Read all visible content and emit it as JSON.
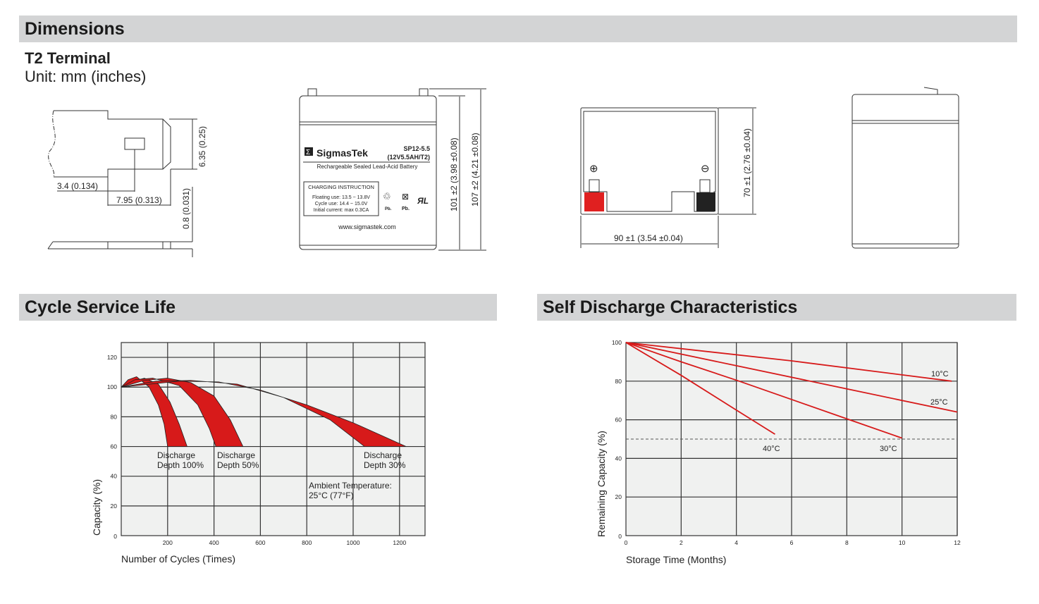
{
  "sections": {
    "dimensions": "Dimensions",
    "cycle": "Cycle Service Life",
    "self_discharge": "Self Discharge Characteristics"
  },
  "dimensions": {
    "terminal": "T2 Terminal",
    "unit": "Unit: mm (inches)",
    "terminal_dims": {
      "d1": "3.4 (0.134)",
      "d2": "7.95 (0.313)",
      "d3": "6.35 (0.25)",
      "d4": "0.8 (0.031)"
    },
    "front": {
      "brand": "SigmasTek",
      "model": "SP12-5.5",
      "spec": "(12V5.5AH/T2)",
      "description": "Rechargeable Sealed Lead-Acid Battery",
      "charging_title": "CHARGING INSTRUCTION",
      "charging_lines": [
        "Floating use: 13.5 ~ 13.8V",
        "Cycle use: 14.4 ~ 15.0V",
        "Initial current: max 0.3CA"
      ],
      "pb1": "Pb.",
      "pb2": "Pb.",
      "website": "www.sigmastek.com",
      "height_case": "101 ±2 (3.98 ±0.08)",
      "height_total": "107 ±2 (4.21 ±0.08)"
    },
    "top": {
      "width": "90 ±1 (3.54 ±0.04)",
      "depth": "70 ±1 (2.76 ±0.04)",
      "positive": "⊕",
      "negative": "⊖",
      "colors": {
        "positive": "#e02020",
        "negative": "#222222"
      }
    }
  },
  "chart_data": [
    {
      "type": "area",
      "title": "Cycle Service Life",
      "xlabel": "Number of Cycles (Times)",
      "ylabel": "Capacity (%)",
      "xlim": [
        0,
        1310
      ],
      "ylim": [
        0,
        130
      ],
      "x_ticks": [
        200,
        400,
        600,
        800,
        1000,
        1200
      ],
      "y_ticks": [
        0,
        20,
        40,
        60,
        80,
        100,
        120
      ],
      "grid": true,
      "color": "#d71a1a",
      "series": [
        {
          "name": "Discharge Depth 100%",
          "lower_edge": [
            [
              0,
              100
            ],
            [
              30,
              105
            ],
            [
              66,
              107
            ],
            [
              120,
              100
            ],
            [
              160,
              88
            ],
            [
              185,
              75
            ],
            [
              200,
              60
            ]
          ],
          "upper_edge": [
            [
              0,
              100
            ],
            [
              50,
              104
            ],
            [
              100,
              106
            ],
            [
              160,
              102
            ],
            [
              210,
              90
            ],
            [
              250,
              75
            ],
            [
              284,
              60
            ]
          ]
        },
        {
          "name": "Discharge Depth 50%",
          "lower_edge": [
            [
              0,
              100
            ],
            [
              60,
              105
            ],
            [
              137,
              106
            ],
            [
              250,
              101
            ],
            [
              330,
              88
            ],
            [
              380,
              72
            ],
            [
              408,
              60
            ]
          ],
          "upper_edge": [
            [
              0,
              100
            ],
            [
              100,
              104.5
            ],
            [
              200,
              106
            ],
            [
              300,
              103
            ],
            [
              400,
              94
            ],
            [
              470,
              78
            ],
            [
              525,
              60
            ]
          ]
        },
        {
          "name": "Discharge Depth 30%",
          "lower_edge": [
            [
              0,
              100
            ],
            [
              150,
              104
            ],
            [
              300,
              104.5
            ],
            [
              500,
              102
            ],
            [
              700,
              93
            ],
            [
              900,
              78
            ],
            [
              1049,
              60
            ]
          ],
          "upper_edge": [
            [
              0,
              100
            ],
            [
              250,
              104
            ],
            [
              420,
              103.5
            ],
            [
              600,
              98
            ],
            [
              800,
              88
            ],
            [
              1000,
              76
            ],
            [
              1228,
              60
            ]
          ]
        }
      ],
      "annotations": {
        "d100": [
          "Discharge",
          "Depth 100%"
        ],
        "d50": [
          "Discharge",
          "Depth 50%"
        ],
        "d30": [
          "Discharge",
          "Depth 30%"
        ],
        "ambient": [
          "Ambient Temperature:",
          "25°C (77°F)"
        ]
      }
    },
    {
      "type": "line",
      "title": "Self Discharge Characteristics",
      "xlabel": "Storage Time (Months)",
      "ylabel": "Remaining Capacity (%)",
      "xlim": [
        0,
        12
      ],
      "ylim": [
        0,
        100
      ],
      "x_ticks": [
        0,
        2,
        4,
        6,
        8,
        10,
        12
      ],
      "y_ticks": [
        0,
        20,
        40,
        60,
        80,
        100
      ],
      "grid": true,
      "reference_line": 50,
      "color": "#d71a1a",
      "series": [
        {
          "name": "10°C",
          "points": [
            [
              0,
              100
            ],
            [
              6,
              90.5
            ],
            [
              11.8,
              80
            ]
          ]
        },
        {
          "name": "25°C",
          "points": [
            [
              0,
              100
            ],
            [
              4,
              88
            ],
            [
              8,
              76
            ],
            [
              12,
              64
            ]
          ]
        },
        {
          "name": "30°C",
          "points": [
            [
              0,
              100
            ],
            [
              2,
              90
            ],
            [
              4,
              80.5
            ],
            [
              6,
              70.5
            ],
            [
              8,
              60.5
            ],
            [
              10,
              50.5
            ]
          ]
        },
        {
          "name": "40°C",
          "points": [
            [
              0,
              100
            ],
            [
              2,
              83
            ],
            [
              4,
              65
            ],
            [
              5.4,
              52.5
            ]
          ]
        }
      ]
    }
  ]
}
